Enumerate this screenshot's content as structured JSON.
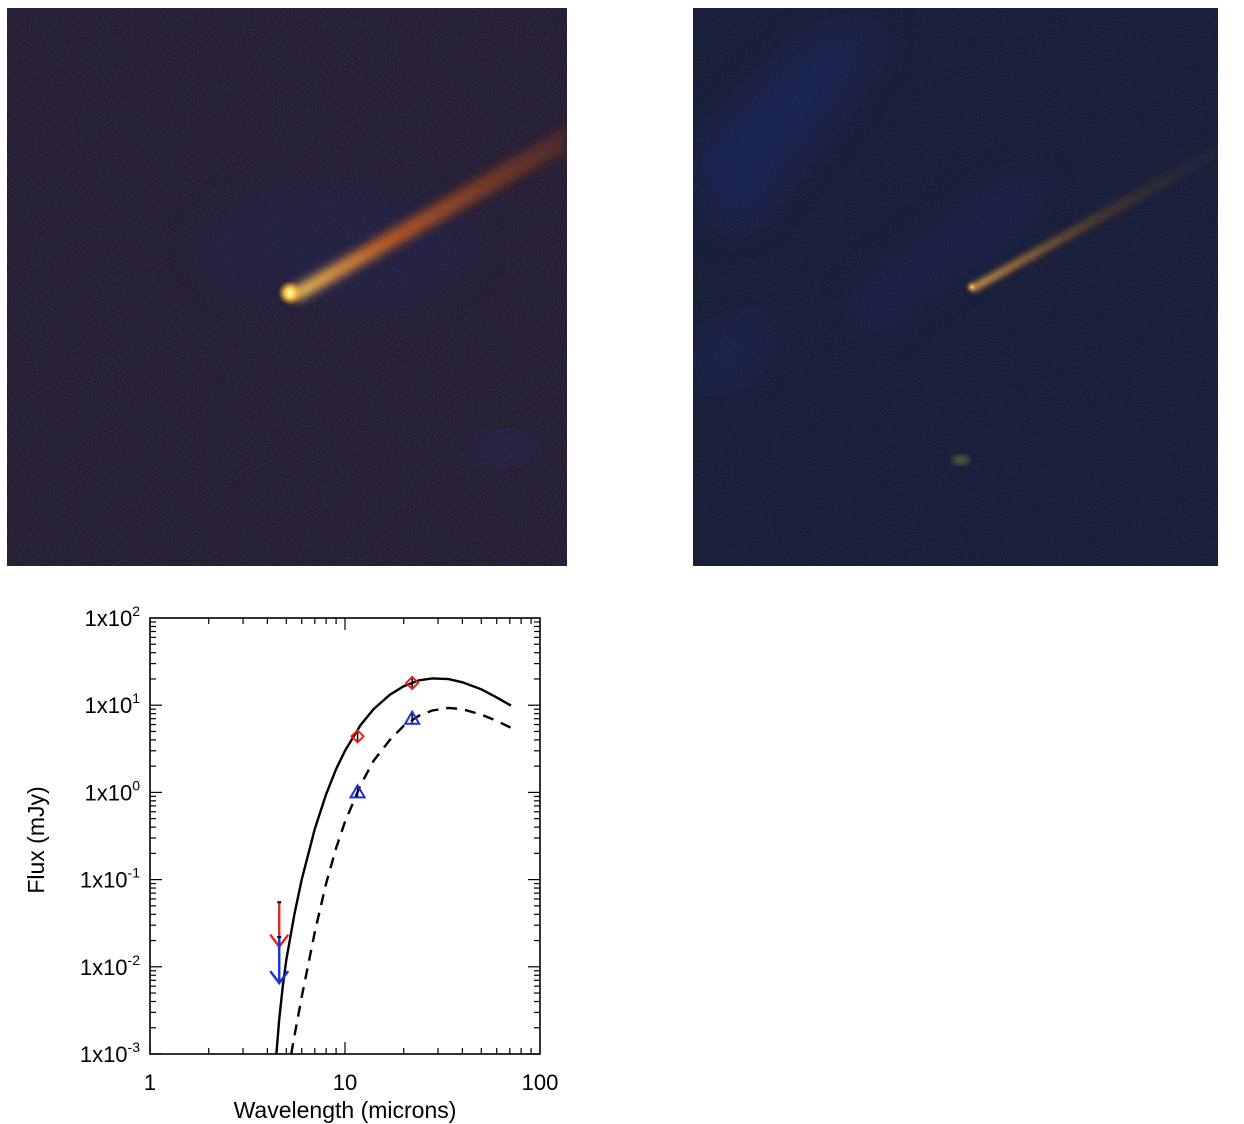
{
  "images": [
    {
      "description": "WISE three-color image of comet, bright elongated dust trail",
      "head_color": "#ffe27a",
      "tail_color": "#d96a1a",
      "background": "#161623"
    },
    {
      "description": "WISE three-color image of comet, faint trail",
      "head_color": "#e4a64a",
      "tail_color": "#8a5a20",
      "background": "#10162a"
    }
  ],
  "chart_data": {
    "type": "scatter",
    "xlabel": "Wavelength (microns)",
    "ylabel": "Flux (mJy)",
    "xscale": "log",
    "yscale": "log",
    "xlim": [
      1,
      100
    ],
    "ylim": [
      0.001,
      100
    ],
    "x_ticks": [
      "1",
      "10",
      "100"
    ],
    "y_ticks": [
      {
        "base": "1x10",
        "exp": "-3"
      },
      {
        "base": "1x10",
        "exp": "-2"
      },
      {
        "base": "1x10",
        "exp": "-1"
      },
      {
        "base": "1x10",
        "exp": "0"
      },
      {
        "base": "1x10",
        "exp": "1"
      },
      {
        "base": "1x10",
        "exp": "2"
      }
    ],
    "series": [
      {
        "marker": "diamond",
        "color": "#e8231e",
        "x": [
          11.6,
          22.1
        ],
        "y": [
          4.4,
          18.0
        ]
      },
      {
        "marker": "triangle",
        "color": "#1a2fe0",
        "x": [
          11.6,
          22.1
        ],
        "y": [
          1.0,
          7.0
        ]
      }
    ],
    "upper_limits": [
      {
        "color": "#e8231e",
        "x": 4.6,
        "y": 0.055,
        "arrow_to": 0.017
      },
      {
        "color": "#1a2fe0",
        "x": 4.6,
        "y": 0.022,
        "arrow_to": 0.0065
      }
    ],
    "models": [
      {
        "style": "solid",
        "color": "#000000",
        "x": [
          4.45,
          4.6,
          4.8,
          5.0,
          5.5,
          6.0,
          7.0,
          8.0,
          9.0,
          10.0,
          12.0,
          14.0,
          17.0,
          20.0,
          24.0,
          28.0,
          34.0,
          40.0,
          50.0,
          60.0,
          71.0
        ],
        "y": [
          0.001,
          0.0025,
          0.006,
          0.012,
          0.04,
          0.1,
          0.38,
          0.95,
          1.85,
          3.0,
          5.9,
          9.0,
          13.2,
          16.5,
          19.3,
          20.3,
          19.9,
          18.3,
          15.2,
          12.3,
          9.9
        ]
      },
      {
        "style": "dashed",
        "color": "#000000",
        "x": [
          5.3,
          5.5,
          6.0,
          7.0,
          8.0,
          9.0,
          10.0,
          12.0,
          14.0,
          17.0,
          20.0,
          24.0,
          28.0,
          34.0,
          40.0,
          50.0,
          60.0,
          71.0
        ],
        "y": [
          0.001,
          0.0016,
          0.0045,
          0.025,
          0.09,
          0.23,
          0.46,
          1.2,
          2.3,
          4.0,
          5.8,
          7.6,
          8.7,
          9.3,
          9.0,
          7.8,
          6.6,
          5.5
        ]
      }
    ]
  }
}
